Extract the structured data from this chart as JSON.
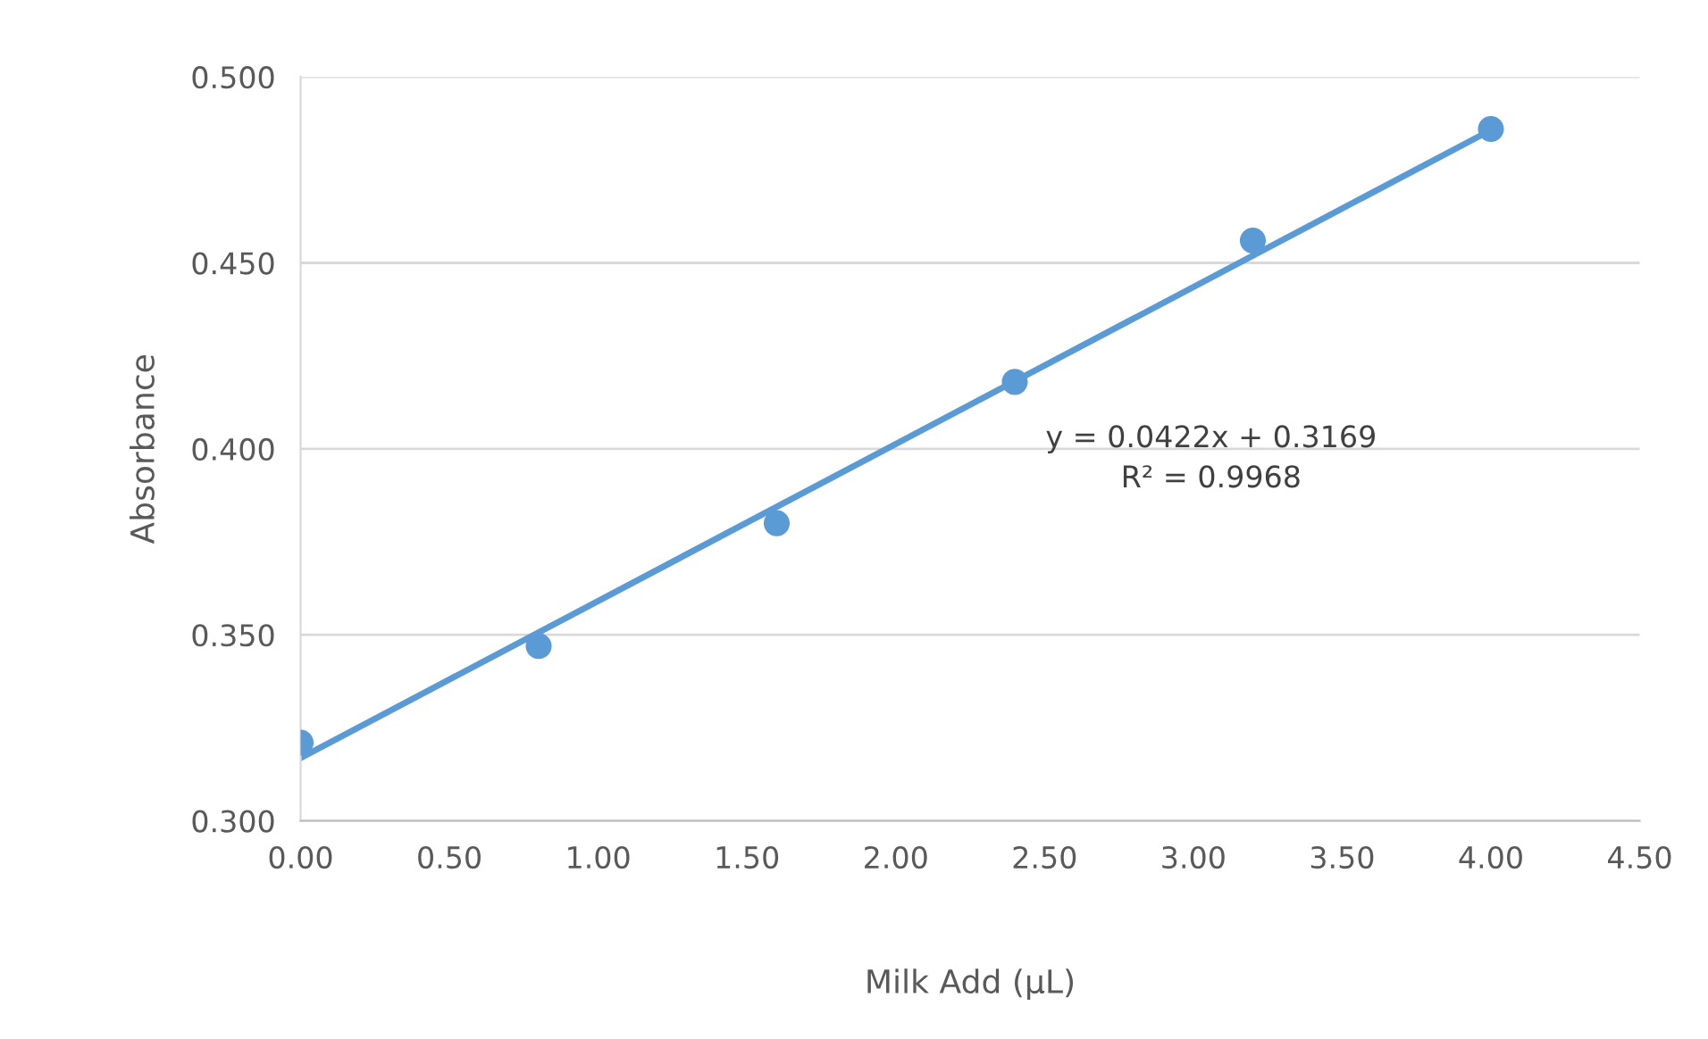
{
  "chart_data": {
    "type": "scatter",
    "xlabel": "Milk Add (μL)",
    "ylabel": "Absorbance",
    "series": [
      {
        "color": "#5b9bd5",
        "x": [
          0.0,
          0.8,
          1.6,
          2.4,
          3.2,
          4.0
        ],
        "values": [
          0.321,
          0.347,
          0.38,
          0.418,
          0.456,
          0.486
        ],
        "marker": "circle"
      },
      {
        "type": "line",
        "color": "#5b9bd5",
        "x": [
          0.0,
          4.0
        ],
        "values": [
          0.3169,
          0.4857
        ],
        "marker": "none",
        "line_style": "solid"
      }
    ],
    "annotations": [
      "y = 0.0422x + 0.3169\nR² = 0.9968"
    ],
    "xlim": [
      0,
      4.5
    ],
    "xticks": [
      {
        "value": 0,
        "label": "0.00"
      },
      {
        "value": 0.5,
        "label": "0.50"
      },
      {
        "value": 1,
        "label": "1.00"
      },
      {
        "value": 1.5,
        "label": "1.50"
      },
      {
        "value": 2,
        "label": "2.00"
      },
      {
        "value": 2.5,
        "label": "2.50"
      },
      {
        "value": 3,
        "label": "3.00"
      },
      {
        "value": 3.5,
        "label": "3.50"
      },
      {
        "value": 4,
        "label": "4.00"
      },
      {
        "value": 4.5,
        "label": "4.50"
      }
    ],
    "ylim": [
      0.3,
      0.5
    ],
    "yticks": [
      {
        "value": 0.3,
        "label": "0.300"
      },
      {
        "value": 0.35,
        "label": "0.350"
      },
      {
        "value": 0.4,
        "label": "0.400"
      },
      {
        "value": 0.45,
        "label": "0.450"
      },
      {
        "value": 0.5,
        "label": "0.500"
      }
    ],
    "grid": "y",
    "legend": false
  }
}
